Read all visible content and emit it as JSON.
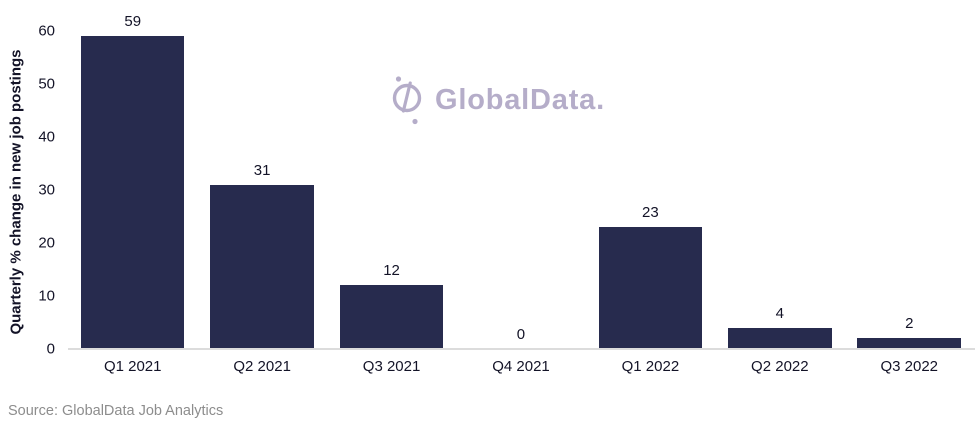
{
  "colors": {
    "bar": "#272b4e",
    "axis_line": "#dcdcdc",
    "text": "#131327",
    "source_text": "#8d8d8d",
    "watermark": "#b5adc9",
    "background": "#ffffff"
  },
  "watermark": {
    "brand_text": "GlobalData.",
    "logo_icon": "globe-slash-circle"
  },
  "source_note": "Source: GlobalData Job Analytics",
  "chart_data": {
    "type": "bar",
    "categories": [
      "Q1 2021",
      "Q2 2021",
      "Q3 2021",
      "Q4 2021",
      "Q1 2022",
      "Q2 2022",
      "Q3 2022"
    ],
    "values": [
      59,
      31,
      12,
      0,
      23,
      4,
      2
    ],
    "title": "",
    "xlabel": "",
    "ylabel": "Quarterly % change in new job postings",
    "ylim": [
      0,
      60
    ],
    "yticks": [
      0,
      10,
      20,
      30,
      40,
      50,
      60
    ],
    "grid": false,
    "legend": "none",
    "value_labels": true,
    "bar_color": "#272b4e"
  }
}
